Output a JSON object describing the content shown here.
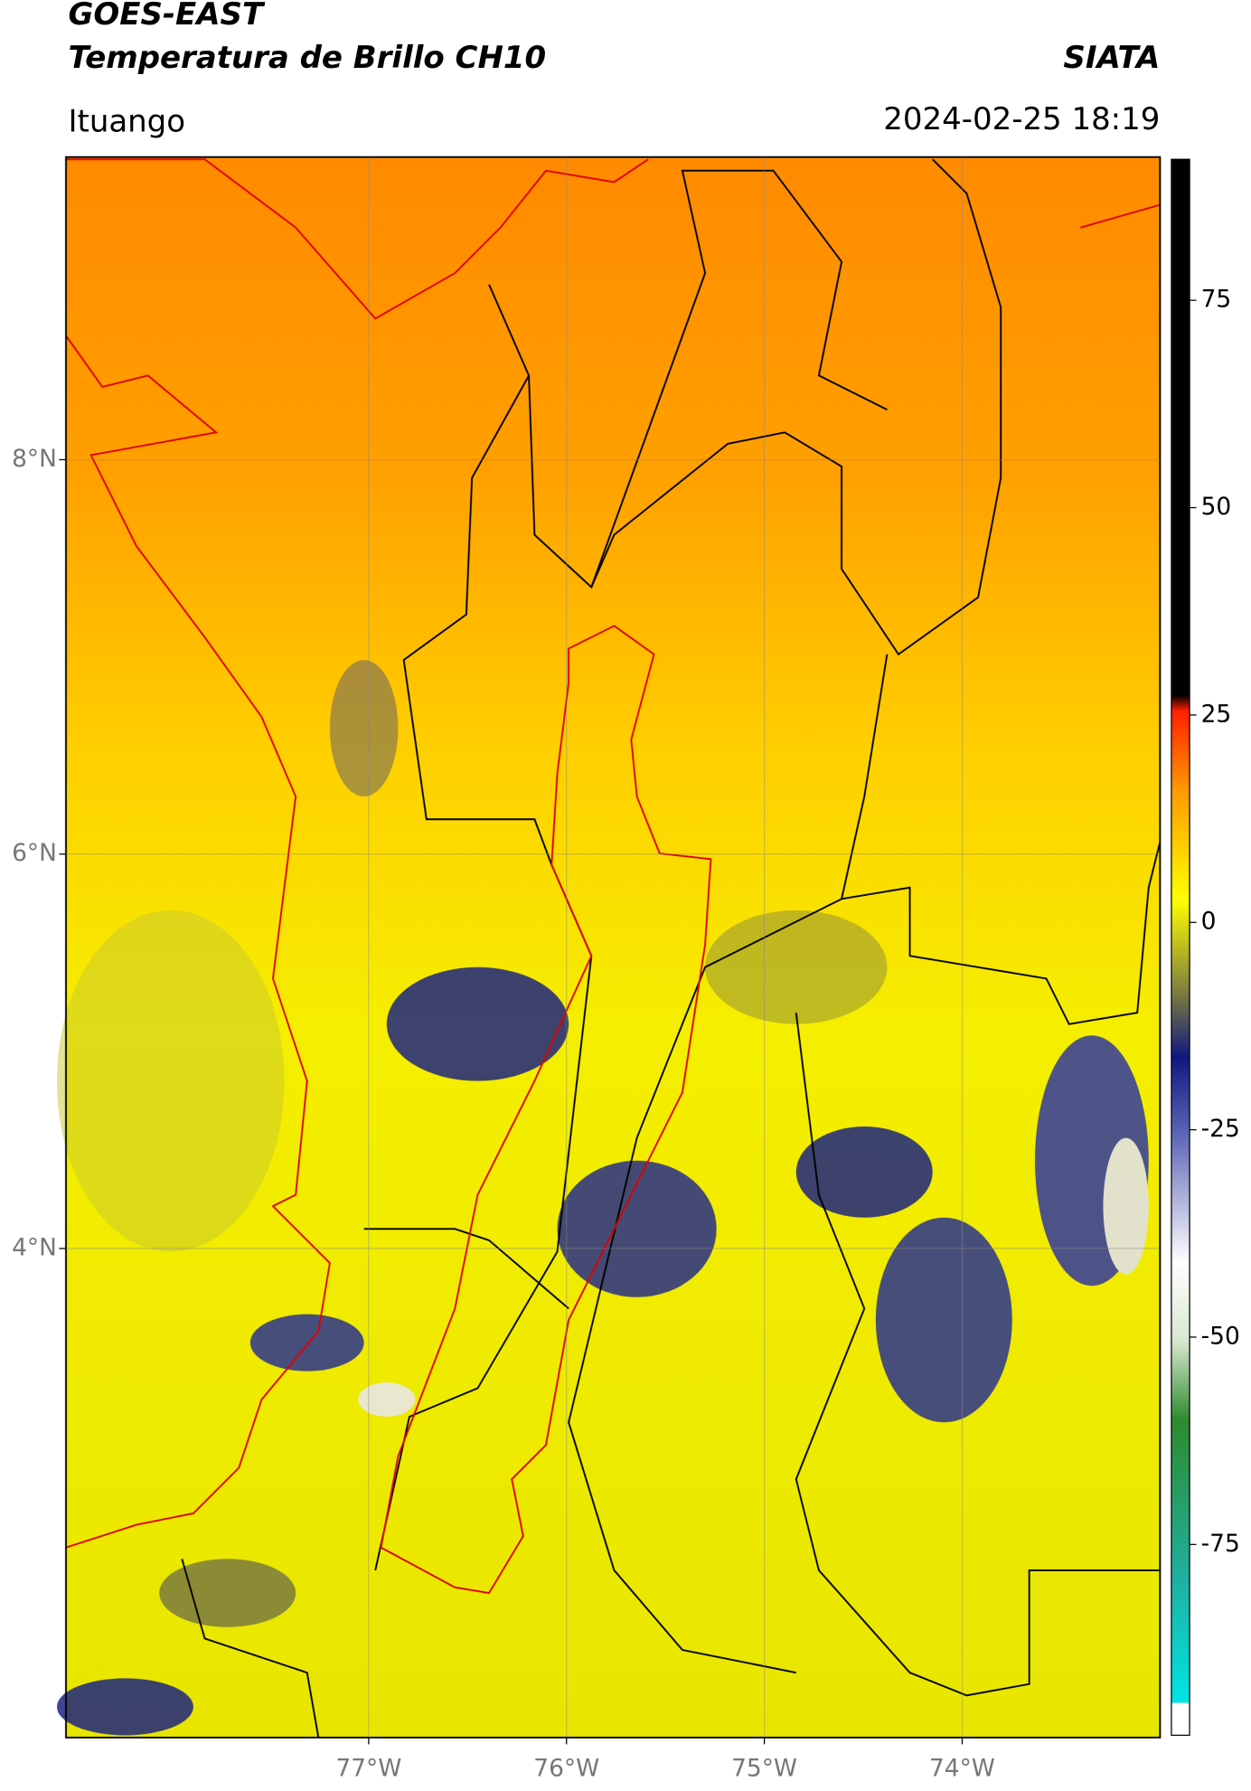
{
  "header": {
    "title": "GOES-EAST",
    "subtitle": "Temperatura de Brillo CH10",
    "brand": "SIATA",
    "location": "Ituango",
    "timestamp": "2024-02-25 18:19"
  },
  "map": {
    "xlim": [
      -78.53,
      -73.0
    ],
    "ylim": [
      1.52,
      9.535
    ],
    "xticks": [
      {
        "value": -77,
        "label": "77°W"
      },
      {
        "value": -76,
        "label": "76°W"
      },
      {
        "value": -75,
        "label": "75°W"
      },
      {
        "value": -74,
        "label": "74°W"
      }
    ],
    "yticks": [
      {
        "value": 8,
        "label": "8°N"
      },
      {
        "value": 6,
        "label": "6°N"
      },
      {
        "value": 4,
        "label": "4°N"
      }
    ]
  },
  "colorbar": {
    "lim": [
      -98,
      92
    ],
    "ticks": [
      75,
      50,
      25,
      0,
      -25,
      -50,
      -75
    ]
  }
}
